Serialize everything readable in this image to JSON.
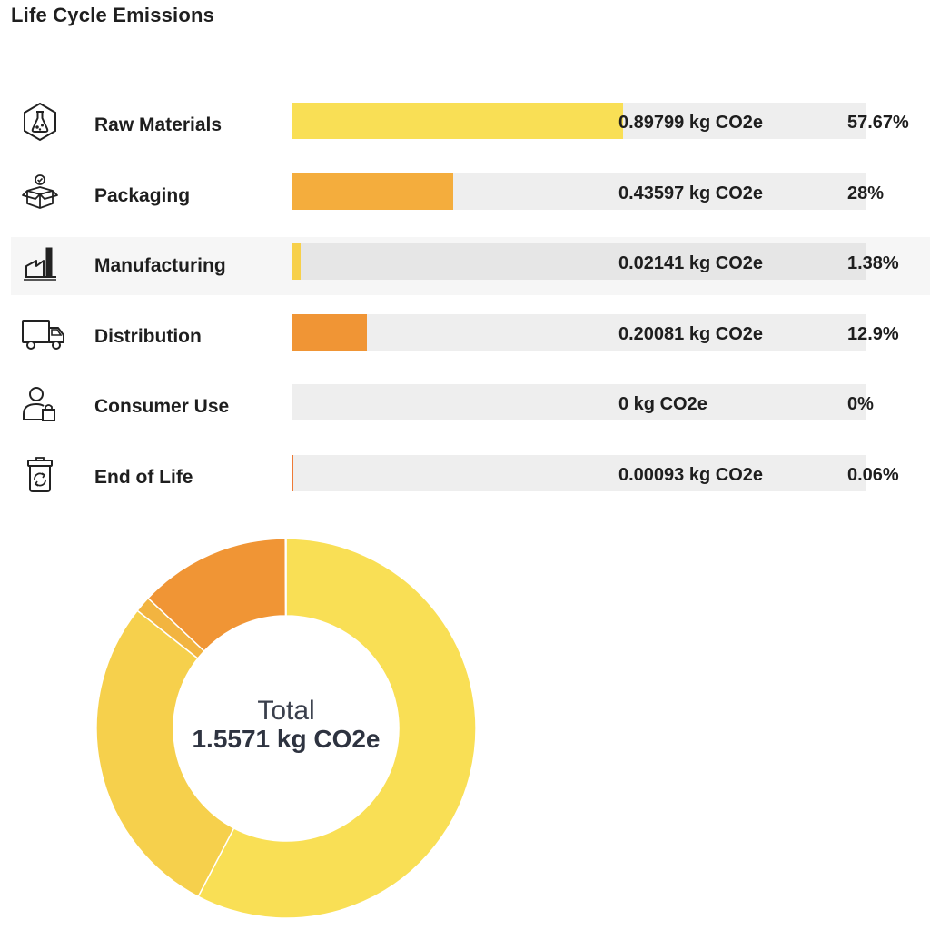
{
  "title": "Life Cycle Emissions",
  "colors": {
    "raw_materials": "#f9df55",
    "packaging": "#f4ad3d",
    "manufacturing": "#f7d04a",
    "distribution": "#f09535",
    "consumer_use": "#f6c243",
    "end_of_life": "#ee7a36",
    "track": "#eeeeee"
  },
  "chart_data": [
    {
      "type": "bar",
      "categories": [
        "Raw Materials",
        "Packaging",
        "Manufacturing",
        "Distribution",
        "Consumer Use",
        "End of Life"
      ],
      "values": [
        0.89799,
        0.43597,
        0.02141,
        0.20081,
        0,
        0.00093
      ],
      "percent": [
        57.67,
        28,
        1.38,
        12.9,
        0,
        0.06
      ],
      "unit": "kg CO2e",
      "orientation": "horizontal"
    },
    {
      "type": "pie",
      "style": "donut",
      "categories": [
        "Raw Materials",
        "Packaging",
        "Manufacturing",
        "Distribution",
        "Consumer Use",
        "End of Life"
      ],
      "values": [
        57.67,
        28,
        1.38,
        12.9,
        0,
        0.06
      ],
      "center_label": "Total",
      "center_value": "1.5571 kg CO2e"
    }
  ],
  "rows": [
    {
      "label": "Raw Materials",
      "icon": "flask-icon",
      "value_text": "0.89799 kg CO2e",
      "pct_text": "57.67%",
      "share": 57.67,
      "color": "#f9df55"
    },
    {
      "label": "Packaging",
      "icon": "box-icon",
      "value_text": "0.43597 kg CO2e",
      "pct_text": "28%",
      "share": 28,
      "color": "#f4ad3d"
    },
    {
      "label": "Manufacturing",
      "icon": "factory-icon",
      "value_text": "0.02141 kg CO2e",
      "pct_text": "1.38%",
      "share": 1.38,
      "color": "#f7d04a"
    },
    {
      "label": "Distribution",
      "icon": "truck-icon",
      "value_text": "0.20081 kg CO2e",
      "pct_text": "12.9%",
      "share": 12.9,
      "color": "#f09535"
    },
    {
      "label": "Consumer Use",
      "icon": "user-bag-icon",
      "value_text": "0 kg CO2e",
      "pct_text": "0%",
      "share": 0,
      "color": "#f6c243"
    },
    {
      "label": "End of Life",
      "icon": "recycle-bin-icon",
      "value_text": "0.00093 kg CO2e",
      "pct_text": "0.06%",
      "share": 0.06,
      "color": "#ee7a36"
    }
  ],
  "donut": {
    "center_label": "Total",
    "center_value": "1.5571 kg CO2e",
    "slice_colors": [
      "#f9df55",
      "#f6d04c",
      "#f2b440",
      "#f09535",
      "#f6c243",
      "#ee7a36"
    ]
  }
}
